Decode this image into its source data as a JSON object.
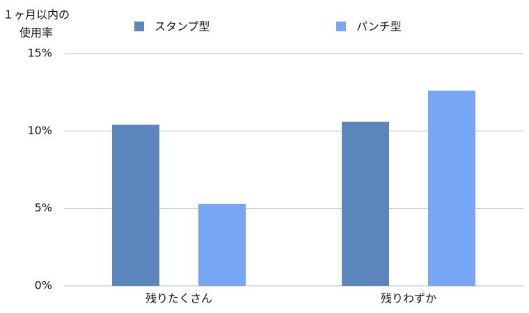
{
  "chart_data": {
    "type": "bar",
    "y_label": [
      "１ヶ月以内の",
      "使用率"
    ],
    "categories": [
      "残りたくさん",
      "残りわずか"
    ],
    "series": [
      {
        "name": "スタンプ型",
        "color": "#5b86bd",
        "values": [
          10.4,
          10.6
        ]
      },
      {
        "name": "パンチ型",
        "color": "#77a6f6",
        "values": [
          5.3,
          12.6
        ]
      }
    ],
    "ylim": [
      0,
      15
    ],
    "yticks": [
      {
        "value": 0,
        "label": "0%"
      },
      {
        "value": 5,
        "label": "5%"
      },
      {
        "value": 10,
        "label": "10%"
      },
      {
        "value": 15,
        "label": "15%"
      }
    ],
    "grid": true
  }
}
